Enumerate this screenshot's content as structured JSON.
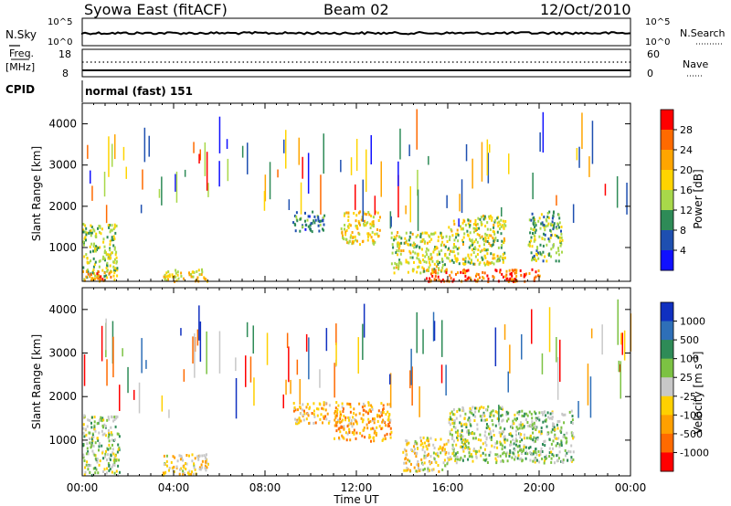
{
  "header": {
    "station": "Syowa East (fitACF)",
    "beam": "Beam 02",
    "date": "12/Oct/2010"
  },
  "noise_panel": {
    "left_label": "N.Sky",
    "right_label": "N.Search",
    "left_ticks": [
      "10^5",
      "10^0"
    ],
    "right_ticks": [
      "10^5",
      "10^0"
    ]
  },
  "freq_panel": {
    "left_label_line1": "Freq.",
    "left_label_line2": "[MHz]",
    "right_label": "Nave",
    "left_ticks": [
      "18",
      "8"
    ],
    "right_ticks": [
      "60",
      "0"
    ]
  },
  "cpid": {
    "label": "CPID",
    "value": "normal (fast) 151"
  },
  "power_panel": {
    "ylabel": "Slant Range [km]",
    "yticks": [
      "4000",
      "3000",
      "2000",
      "1000"
    ],
    "colorbar_label": "Power [dB]",
    "colorbar_ticks": [
      "28",
      "24",
      "20",
      "16",
      "12",
      "8",
      "4"
    ],
    "colorbar_colors": [
      "#ff0000",
      "#ff6a00",
      "#ffa500",
      "#ffd400",
      "#a8d84a",
      "#2e8b57",
      "#1e4fb0",
      "#1010ff"
    ]
  },
  "velocity_panel": {
    "ylabel": "Slant Range [km]",
    "yticks": [
      "4000",
      "3000",
      "2000",
      "1000"
    ],
    "colorbar_label": "Velocity [m s",
    "colorbar_label_sup": "-1",
    "colorbar_label_end": "]",
    "colorbar_ticks": [
      "1000",
      "500",
      "100",
      "25",
      "-25",
      "-100",
      "-500",
      "-1000"
    ],
    "colorbar_colors": [
      "#1030c0",
      "#2e6fb8",
      "#2e8b57",
      "#7cc243",
      "#c8c8c8",
      "#ffd000",
      "#ffa000",
      "#ff6a00",
      "#ff0000"
    ]
  },
  "xaxis": {
    "label": "Time UT",
    "ticks": [
      "00:00",
      "04:00",
      "08:00",
      "12:00",
      "16:00",
      "20:00",
      "00:00"
    ]
  },
  "chart_data": [
    {
      "type": "heatmap",
      "title": "Power",
      "xlabel": "Time UT",
      "ylabel": "Slant Range [km]",
      "x_range_hours": [
        0,
        24
      ],
      "ylim": [
        180,
        4500
      ],
      "colorbar": {
        "label": "Power [dB]",
        "min": 0,
        "max": 32
      },
      "regions": [
        {
          "t": [
            0,
            1.5
          ],
          "range": [
            200,
            1600
          ],
          "value": 14
        },
        {
          "t": [
            0,
            1.3
          ],
          "range": [
            200,
            450
          ],
          "value": 26
        },
        {
          "t": [
            3.5,
            5.5
          ],
          "range": [
            200,
            500
          ],
          "value": 18
        },
        {
          "t": [
            9.2,
            10.6
          ],
          "range": [
            1400,
            1900
          ],
          "value": 9
        },
        {
          "t": [
            11.3,
            13.0
          ],
          "range": [
            1100,
            1900
          ],
          "value": 18
        },
        {
          "t": [
            13.5,
            16.0
          ],
          "range": [
            400,
            1400
          ],
          "value": 16
        },
        {
          "t": [
            15.0,
            20.0
          ],
          "range": [
            200,
            500
          ],
          "value": 26
        },
        {
          "t": [
            16.0,
            18.5
          ],
          "range": [
            600,
            1800
          ],
          "value": 16
        },
        {
          "t": [
            19.5,
            21.0
          ],
          "range": [
            700,
            1900
          ],
          "value": 12
        }
      ]
    },
    {
      "type": "heatmap",
      "title": "Velocity",
      "xlabel": "Time UT",
      "ylabel": "Slant Range [km]",
      "x_range_hours": [
        0,
        24
      ],
      "ylim": [
        180,
        4500
      ],
      "colorbar": {
        "label": "Velocity [m s-1]",
        "min": -1000,
        "max": 1000
      },
      "regions": [
        {
          "t": [
            0,
            1.6
          ],
          "range": [
            200,
            1600
          ],
          "value": 120
        },
        {
          "t": [
            3.5,
            5.5
          ],
          "range": [
            200,
            700
          ],
          "value": -200
        },
        {
          "t": [
            9.2,
            10.8
          ],
          "range": [
            1400,
            1900
          ],
          "value": -300
        },
        {
          "t": [
            11.0,
            13.5
          ],
          "range": [
            1000,
            1900
          ],
          "value": -400
        },
        {
          "t": [
            14.0,
            16.0
          ],
          "range": [
            300,
            1100
          ],
          "value": -150
        },
        {
          "t": [
            16.0,
            18.5
          ],
          "range": [
            500,
            1800
          ],
          "value": 80
        },
        {
          "t": [
            18.5,
            21.5
          ],
          "range": [
            500,
            1700
          ],
          "value": 150
        }
      ]
    }
  ]
}
